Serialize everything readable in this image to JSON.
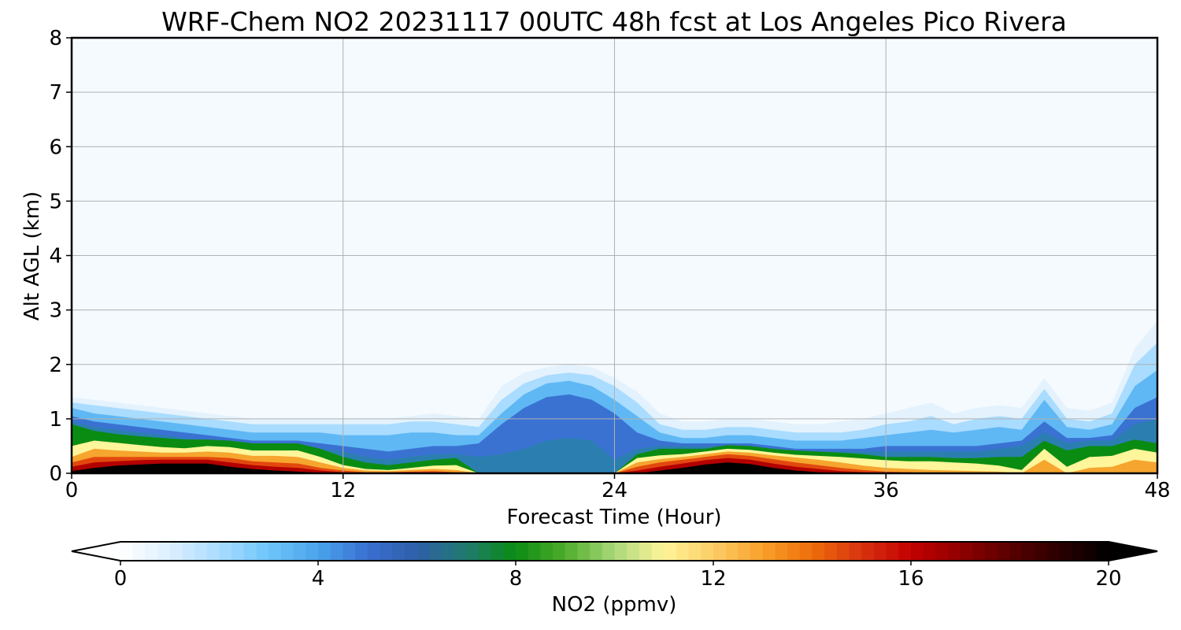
{
  "chart_data": {
    "type": "heatmap",
    "title": "WRF-Chem NO2  20231117 00UTC 48h fcst at Los Angeles Pico Rivera",
    "xlabel": "Forecast Time (Hour)",
    "ylabel": "Alt AGL (km)",
    "xlim": [
      0,
      48
    ],
    "ylim": [
      0,
      8
    ],
    "xticks": [
      0,
      12,
      24,
      36,
      48
    ],
    "yticks": [
      0,
      1,
      2,
      3,
      4,
      5,
      6,
      7,
      8
    ],
    "grid": true,
    "colorbar": {
      "label": "NO2  (ppmv)",
      "range": [
        0,
        20
      ],
      "ticks": [
        0,
        4,
        8,
        12,
        16,
        20
      ],
      "extend": "both",
      "colors": [
        "#ffffff",
        "#dcefff",
        "#a9dcff",
        "#6ec5fa",
        "#4aa3ec",
        "#3a6fd0",
        "#2e5fa8",
        "#207a6e",
        "#0a8c12",
        "#4fac2c",
        "#a9d87a",
        "#fff59a",
        "#fccd66",
        "#f9a02a",
        "#ee6c0a",
        "#d83210",
        "#c30000",
        "#8f0000",
        "#5a0000",
        "#2a0000",
        "#000000"
      ]
    },
    "layers": {
      "hours": [
        0,
        1,
        2,
        3,
        4,
        5,
        6,
        7,
        8,
        9,
        10,
        11,
        12,
        13,
        14,
        15,
        16,
        17,
        18,
        19,
        20,
        21,
        22,
        23,
        24,
        25,
        26,
        27,
        28,
        29,
        30,
        31,
        32,
        33,
        34,
        35,
        36,
        37,
        38,
        39,
        40,
        41,
        42,
        43,
        44,
        45,
        46,
        47,
        48
      ],
      "lt_0_2": [
        1.4,
        1.35,
        1.3,
        1.25,
        1.2,
        1.15,
        1.1,
        1.05,
        1.0,
        1.0,
        1.0,
        1.0,
        1.0,
        1.0,
        1.0,
        1.05,
        1.1,
        1.05,
        1.0,
        1.6,
        1.85,
        1.95,
        2.0,
        1.95,
        1.75,
        1.5,
        1.1,
        0.95,
        0.95,
        1.0,
        1.0,
        0.95,
        0.9,
        0.9,
        0.95,
        1.0,
        1.1,
        1.2,
        1.3,
        1.1,
        1.2,
        1.25,
        1.2,
        1.75,
        1.2,
        1.15,
        1.3,
        2.3,
        2.8
      ],
      "lt_0_1": [
        1.3,
        1.25,
        1.2,
        1.15,
        1.1,
        1.05,
        1.0,
        0.95,
        0.9,
        0.9,
        0.9,
        0.9,
        0.9,
        0.9,
        0.9,
        0.95,
        0.95,
        0.9,
        0.85,
        1.35,
        1.65,
        1.8,
        1.85,
        1.8,
        1.6,
        1.3,
        0.9,
        0.8,
        0.8,
        0.85,
        0.85,
        0.8,
        0.75,
        0.75,
        0.75,
        0.8,
        0.9,
        0.95,
        1.05,
        0.9,
        1.0,
        1.05,
        1.0,
        1.55,
        1.0,
        0.95,
        1.1,
        2.0,
        2.4
      ],
      "lt_2": [
        1.2,
        1.1,
        1.05,
        1.0,
        0.95,
        0.9,
        0.85,
        0.8,
        0.75,
        0.75,
        0.75,
        0.75,
        0.7,
        0.7,
        0.7,
        0.75,
        0.75,
        0.7,
        0.7,
        1.1,
        1.45,
        1.65,
        1.7,
        1.6,
        1.35,
        1.05,
        0.75,
        0.65,
        0.65,
        0.7,
        0.7,
        0.65,
        0.6,
        0.6,
        0.6,
        0.65,
        0.7,
        0.75,
        0.8,
        0.75,
        0.8,
        0.85,
        0.8,
        1.35,
        0.85,
        0.8,
        0.9,
        1.6,
        1.9
      ],
      "lt_4": [
        1.05,
        0.95,
        0.9,
        0.85,
        0.8,
        0.75,
        0.7,
        0.65,
        0.6,
        0.6,
        0.6,
        0.55,
        0.5,
        0.45,
        0.4,
        0.45,
        0.5,
        0.5,
        0.55,
        0.9,
        1.2,
        1.4,
        1.45,
        1.35,
        1.1,
        0.75,
        0.6,
        0.55,
        0.55,
        0.55,
        0.55,
        0.5,
        0.45,
        0.45,
        0.45,
        0.45,
        0.5,
        0.5,
        0.5,
        0.5,
        0.5,
        0.55,
        0.6,
        0.95,
        0.65,
        0.65,
        0.7,
        1.2,
        1.4
      ],
      "lt_6": [
        0.95,
        0.85,
        0.8,
        0.75,
        0.7,
        0.65,
        0.6,
        0.55,
        0.5,
        0.5,
        0.5,
        0.45,
        0.4,
        0.3,
        0.25,
        0.3,
        0.35,
        0.35,
        0.3,
        0.35,
        0.45,
        0.6,
        0.65,
        0.6,
        0.25,
        0.45,
        0.5,
        0.5,
        0.5,
        0.5,
        0.5,
        0.45,
        0.4,
        0.4,
        0.4,
        0.4,
        0.4,
        0.4,
        0.4,
        0.4,
        0.4,
        0.45,
        0.5,
        0.75,
        0.55,
        0.6,
        0.6,
        0.9,
        1.0
      ],
      "lt_8": [
        0.9,
        0.78,
        0.72,
        0.68,
        0.65,
        0.62,
        0.62,
        0.6,
        0.55,
        0.55,
        0.55,
        0.45,
        0.3,
        0.2,
        0.15,
        0.2,
        0.25,
        0.28,
        0.0,
        0.0,
        0.0,
        0.0,
        0.0,
        0.0,
        0.0,
        0.35,
        0.45,
        0.45,
        0.45,
        0.52,
        0.5,
        0.45,
        0.42,
        0.4,
        0.38,
        0.35,
        0.3,
        0.3,
        0.3,
        0.28,
        0.28,
        0.3,
        0.3,
        0.6,
        0.42,
        0.5,
        0.5,
        0.62,
        0.55
      ],
      "lt_10": [
        0.5,
        0.6,
        0.56,
        0.52,
        0.48,
        0.46,
        0.5,
        0.48,
        0.42,
        0.42,
        0.42,
        0.3,
        0.15,
        0.08,
        0.06,
        0.1,
        0.14,
        0.15,
        0.0,
        0.0,
        0.0,
        0.0,
        0.0,
        0.0,
        0.0,
        0.28,
        0.33,
        0.35,
        0.4,
        0.45,
        0.43,
        0.38,
        0.34,
        0.32,
        0.3,
        0.27,
        0.24,
        0.22,
        0.22,
        0.2,
        0.18,
        0.14,
        0.06,
        0.45,
        0.12,
        0.3,
        0.32,
        0.45,
        0.38
      ],
      "lt_12": [
        0.3,
        0.45,
        0.42,
        0.4,
        0.38,
        0.38,
        0.4,
        0.38,
        0.32,
        0.32,
        0.3,
        0.2,
        0.1,
        0.05,
        0.04,
        0.06,
        0.08,
        0.06,
        0.0,
        0.0,
        0.0,
        0.0,
        0.0,
        0.0,
        0.0,
        0.2,
        0.26,
        0.3,
        0.35,
        0.4,
        0.38,
        0.33,
        0.29,
        0.25,
        0.2,
        0.14,
        0.1,
        0.08,
        0.06,
        0.05,
        0.04,
        0.03,
        0.0,
        0.25,
        0.0,
        0.1,
        0.12,
        0.25,
        0.2
      ],
      "lt_14": [
        0.2,
        0.3,
        0.3,
        0.3,
        0.3,
        0.3,
        0.3,
        0.28,
        0.22,
        0.2,
        0.18,
        0.1,
        0.05,
        0.02,
        0.02,
        0.03,
        0.04,
        0.02,
        0.0,
        0.0,
        0.0,
        0.0,
        0.0,
        0.0,
        0.0,
        0.12,
        0.2,
        0.25,
        0.3,
        0.35,
        0.32,
        0.26,
        0.2,
        0.15,
        0.1,
        0.06,
        0.03,
        0.02,
        0.0,
        0.0,
        0.0,
        0.0,
        0.0,
        0.0,
        0.0,
        0.0,
        0.0,
        0.0,
        0.0
      ],
      "lt_17": [
        0.12,
        0.2,
        0.22,
        0.24,
        0.25,
        0.25,
        0.25,
        0.2,
        0.15,
        0.12,
        0.1,
        0.05,
        0.02,
        0.0,
        0.0,
        0.0,
        0.0,
        0.0,
        0.0,
        0.0,
        0.0,
        0.0,
        0.0,
        0.0,
        0.0,
        0.05,
        0.12,
        0.18,
        0.24,
        0.28,
        0.25,
        0.18,
        0.12,
        0.08,
        0.04,
        0.02,
        0.0,
        0.0,
        0.0,
        0.0,
        0.0,
        0.0,
        0.0,
        0.0,
        0.0,
        0.0,
        0.0,
        0.0,
        0.0
      ],
      "lt_19": [
        0.04,
        0.1,
        0.14,
        0.16,
        0.18,
        0.18,
        0.18,
        0.12,
        0.08,
        0.05,
        0.03,
        0.01,
        0.0,
        0.0,
        0.0,
        0.0,
        0.0,
        0.0,
        0.0,
        0.0,
        0.0,
        0.0,
        0.0,
        0.0,
        0.0,
        0.0,
        0.05,
        0.1,
        0.16,
        0.2,
        0.17,
        0.1,
        0.05,
        0.02,
        0.0,
        0.0,
        0.0,
        0.0,
        0.0,
        0.0,
        0.0,
        0.0,
        0.0,
        0.0,
        0.0,
        0.0,
        0.0,
        0.0,
        0.0
      ]
    }
  }
}
